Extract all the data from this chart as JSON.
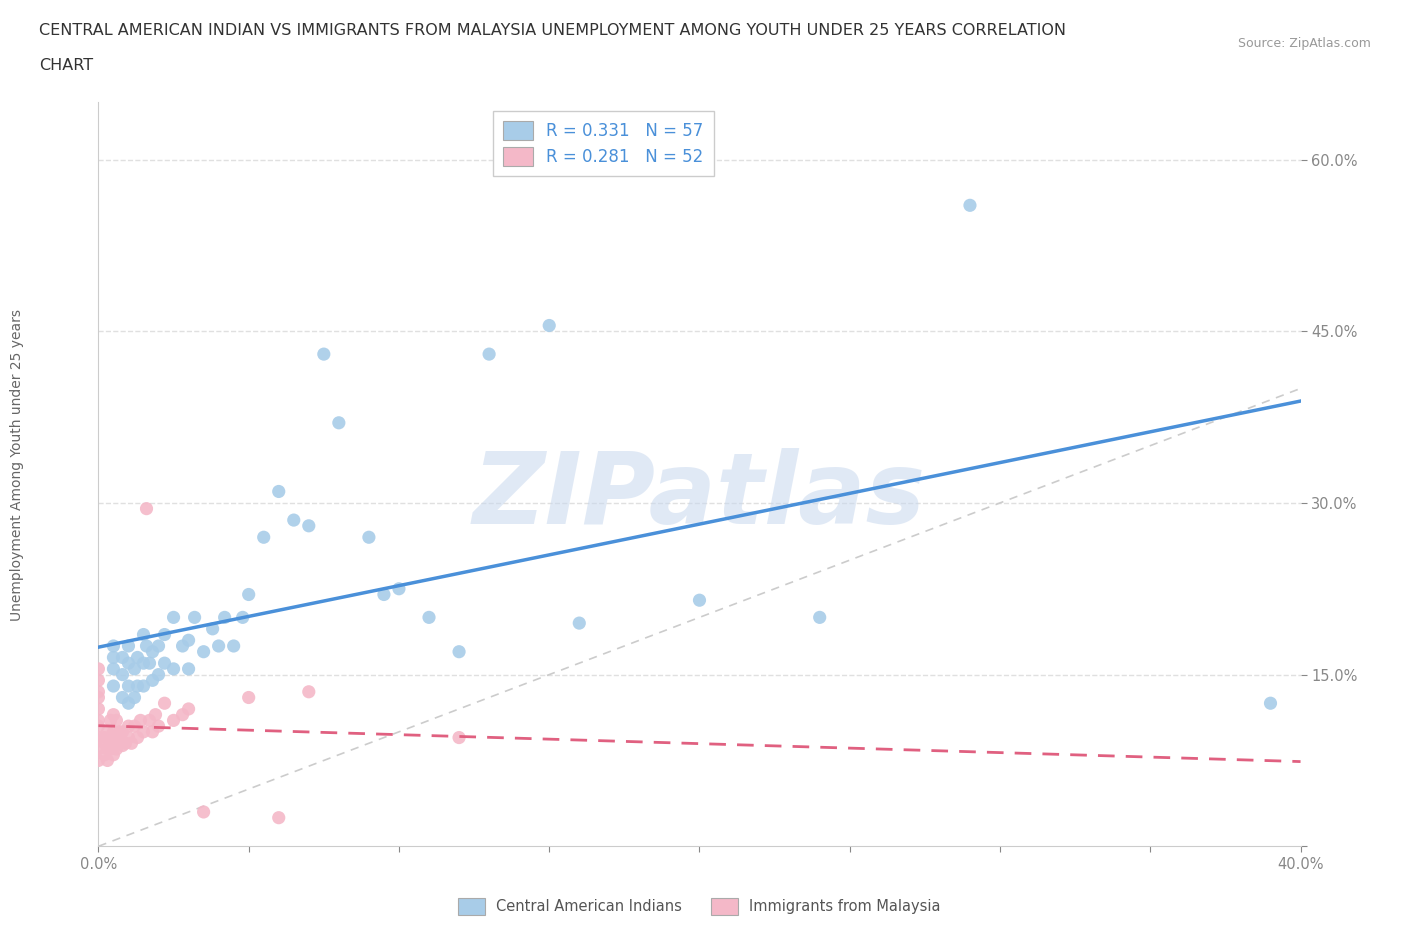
{
  "title_line1": "CENTRAL AMERICAN INDIAN VS IMMIGRANTS FROM MALAYSIA UNEMPLOYMENT AMONG YOUTH UNDER 25 YEARS CORRELATION",
  "title_line2": "CHART",
  "source_text": "Source: ZipAtlas.com",
  "ylabel": "Unemployment Among Youth under 25 years",
  "xlim": [
    0.0,
    0.4
  ],
  "ylim": [
    0.0,
    0.65
  ],
  "blue_R": 0.331,
  "blue_N": 57,
  "pink_R": 0.281,
  "pink_N": 52,
  "blue_color": "#a8cce8",
  "pink_color": "#f4b8c8",
  "blue_line_color": "#4a90d9",
  "pink_line_color": "#e06080",
  "diag_color": "#cccccc",
  "watermark": "ZIPatlas",
  "watermark_blue": "#c8d8ee",
  "watermark_pink": "#c8a8b8",
  "grid_color": "#e0e0e0",
  "blue_x": [
    0.005,
    0.005,
    0.005,
    0.005,
    0.008,
    0.008,
    0.008,
    0.01,
    0.01,
    0.01,
    0.01,
    0.012,
    0.012,
    0.013,
    0.013,
    0.015,
    0.015,
    0.015,
    0.016,
    0.017,
    0.018,
    0.018,
    0.02,
    0.02,
    0.022,
    0.022,
    0.025,
    0.025,
    0.028,
    0.03,
    0.03,
    0.032,
    0.035,
    0.038,
    0.04,
    0.042,
    0.045,
    0.048,
    0.05,
    0.055,
    0.06,
    0.065,
    0.07,
    0.075,
    0.08,
    0.09,
    0.095,
    0.1,
    0.11,
    0.12,
    0.13,
    0.15,
    0.16,
    0.2,
    0.24,
    0.29,
    0.39
  ],
  "blue_y": [
    0.14,
    0.155,
    0.165,
    0.175,
    0.13,
    0.15,
    0.165,
    0.125,
    0.14,
    0.16,
    0.175,
    0.13,
    0.155,
    0.14,
    0.165,
    0.14,
    0.16,
    0.185,
    0.175,
    0.16,
    0.145,
    0.17,
    0.15,
    0.175,
    0.16,
    0.185,
    0.155,
    0.2,
    0.175,
    0.155,
    0.18,
    0.2,
    0.17,
    0.19,
    0.175,
    0.2,
    0.175,
    0.2,
    0.22,
    0.27,
    0.31,
    0.285,
    0.28,
    0.43,
    0.37,
    0.27,
    0.22,
    0.225,
    0.2,
    0.17,
    0.43,
    0.455,
    0.195,
    0.215,
    0.2,
    0.56,
    0.125
  ],
  "pink_x": [
    0.0,
    0.0,
    0.0,
    0.0,
    0.0,
    0.0,
    0.0,
    0.0,
    0.0,
    0.0,
    0.002,
    0.002,
    0.002,
    0.003,
    0.003,
    0.003,
    0.004,
    0.004,
    0.004,
    0.005,
    0.005,
    0.005,
    0.005,
    0.006,
    0.006,
    0.006,
    0.007,
    0.007,
    0.008,
    0.008,
    0.009,
    0.01,
    0.01,
    0.011,
    0.012,
    0.013,
    0.014,
    0.015,
    0.016,
    0.017,
    0.018,
    0.019,
    0.02,
    0.022,
    0.025,
    0.028,
    0.03,
    0.035,
    0.05,
    0.06,
    0.07,
    0.12
  ],
  "pink_y": [
    0.075,
    0.085,
    0.095,
    0.105,
    0.11,
    0.12,
    0.13,
    0.135,
    0.145,
    0.155,
    0.08,
    0.09,
    0.095,
    0.075,
    0.085,
    0.1,
    0.085,
    0.095,
    0.11,
    0.08,
    0.09,
    0.1,
    0.115,
    0.085,
    0.095,
    0.11,
    0.09,
    0.1,
    0.088,
    0.1,
    0.09,
    0.095,
    0.105,
    0.09,
    0.105,
    0.095,
    0.11,
    0.1,
    0.295,
    0.11,
    0.1,
    0.115,
    0.105,
    0.125,
    0.11,
    0.115,
    0.12,
    0.03,
    0.13,
    0.025,
    0.135,
    0.095
  ]
}
